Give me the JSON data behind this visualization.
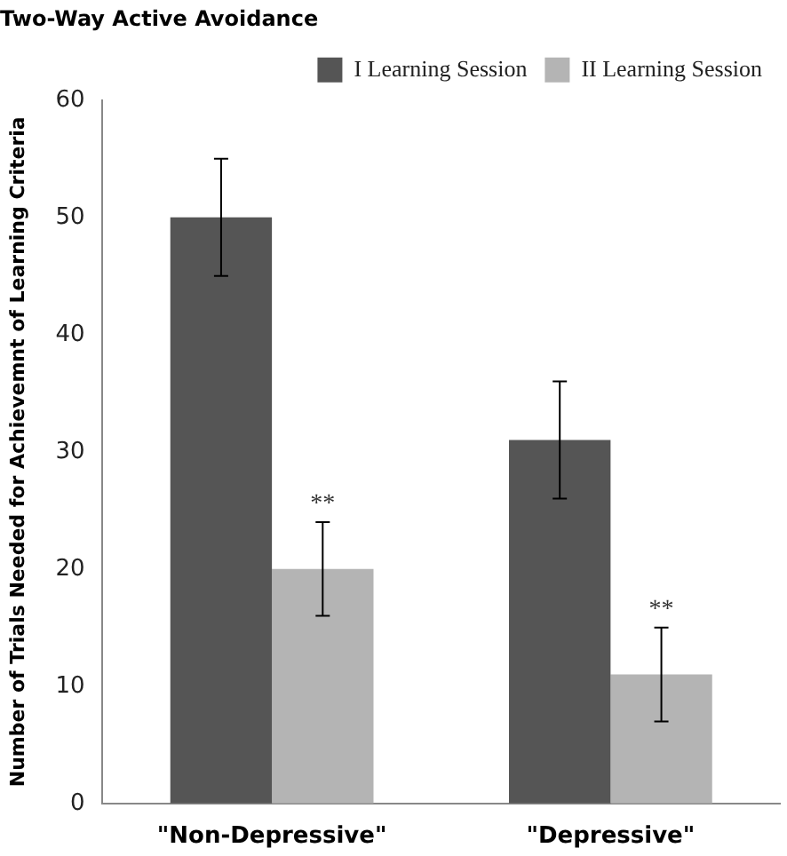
{
  "chart_data": {
    "type": "bar",
    "title": "Two-Way Active Avoidance",
    "ylabel": "Number of Trials Needed for Achievemnt of Learning Criteria",
    "categories": [
      "\"Non-Depressive\"",
      "\"Depressive\""
    ],
    "series": [
      {
        "name": "I Learning Session",
        "color": "#555555",
        "values": [
          50,
          31
        ],
        "errors": [
          5,
          5
        ]
      },
      {
        "name": "II Learning Session",
        "color": "#b4b4b4",
        "values": [
          20,
          11
        ],
        "errors": [
          4,
          4
        ]
      }
    ],
    "ylim": [
      0,
      60
    ],
    "yticks": [
      0,
      10,
      20,
      30,
      40,
      50,
      60
    ],
    "grid": false,
    "legend": "top right",
    "annotations": [
      {
        "text": "**",
        "x": "\"Non-Depressive\"",
        "y": 24
      },
      {
        "text": "**",
        "x": "\"Depressive\"",
        "y": 15
      }
    ]
  }
}
